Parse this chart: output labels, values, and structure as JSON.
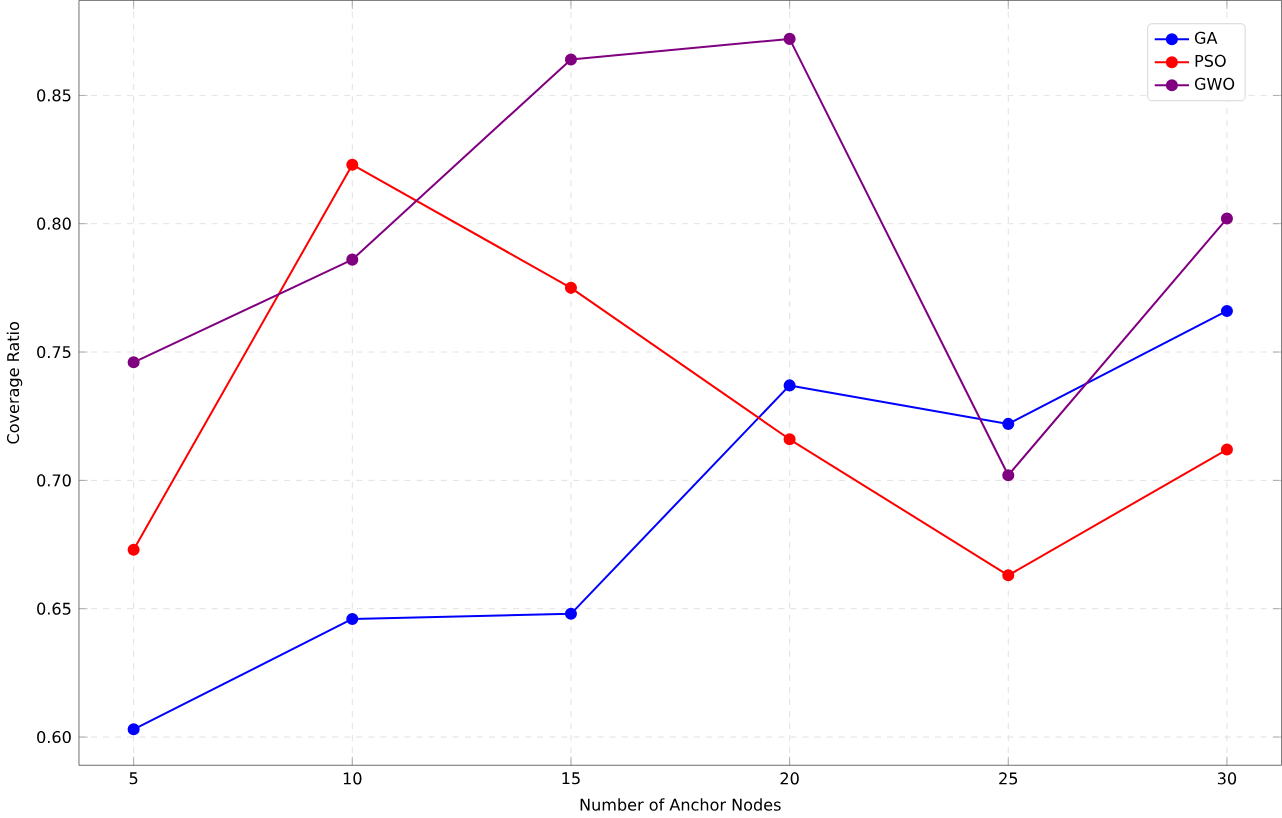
{
  "chart_data": {
    "type": "line",
    "xlabel": "Number of Anchor Nodes",
    "ylabel": "Coverage Ratio",
    "x": [
      5,
      10,
      15,
      20,
      25,
      30
    ],
    "series": [
      {
        "name": "GA",
        "color": "#0000ff",
        "values": [
          0.603,
          0.646,
          0.648,
          0.737,
          0.722,
          0.766
        ]
      },
      {
        "name": "PSO",
        "color": "#ff0000",
        "values": [
          0.673,
          0.823,
          0.775,
          0.716,
          0.663,
          0.712
        ]
      },
      {
        "name": "GWO",
        "color": "#800080",
        "values": [
          0.746,
          0.786,
          0.864,
          0.872,
          0.702,
          0.802
        ]
      }
    ],
    "xlim": [
      3.75,
      31.25
    ],
    "ylim": [
      0.589,
      0.887
    ],
    "xticks": [
      5,
      10,
      15,
      20,
      25,
      30
    ],
    "yticks": [
      {
        "value": 0.6,
        "label": "0.60"
      },
      0.65,
      {
        "value": 0.7,
        "label": "0.70"
      },
      0.75,
      {
        "value": 0.8,
        "label": "0.80"
      },
      0.85
    ],
    "grid": true,
    "legend": "top right",
    "marker": "circle",
    "line_style": "solid"
  }
}
